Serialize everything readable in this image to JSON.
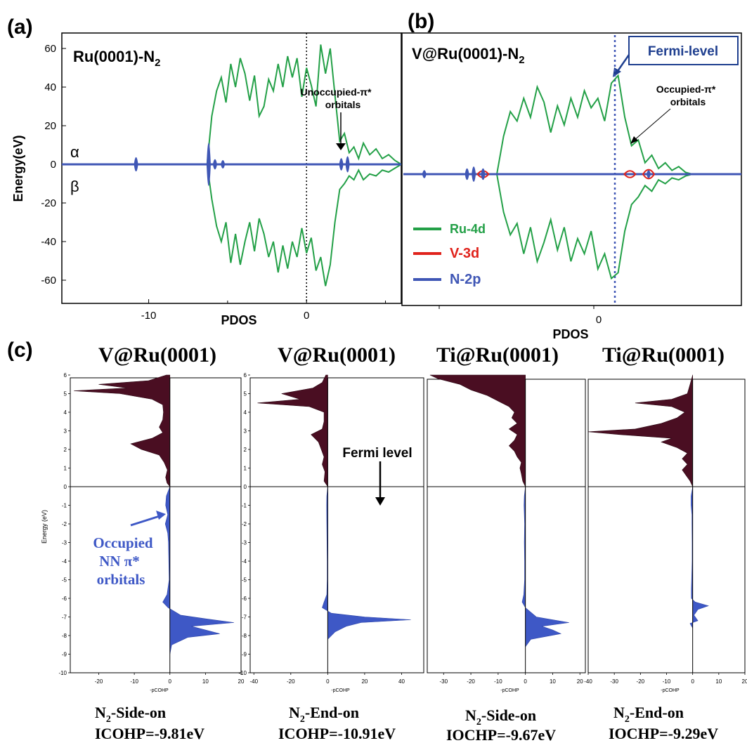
{
  "panel_labels": {
    "a": "(a)",
    "b": "(b)",
    "c": "(c)"
  },
  "colors": {
    "ru4d": "#23a047",
    "v3d": "#e0231c",
    "n2p": "#3f56b5",
    "cohp_pos": "#4a0e22",
    "cohp_neg": "#3e58c6",
    "callout": "#1f3f8f"
  },
  "chart_data": [
    {
      "type": "line",
      "panel": "a",
      "title": "Ru(0001)-N",
      "title_sub": "2",
      "ylabel": "Energy(eV)",
      "xlabel": "PDOS",
      "ylim": [
        -72,
        68
      ],
      "xlim": [
        -15.5,
        6
      ],
      "yticks": [
        "60",
        "40",
        "20",
        "0",
        "-20",
        "-40",
        "-60"
      ],
      "yticks_values": [
        60,
        40,
        20,
        0,
        -20,
        -40,
        -60
      ],
      "xticks": [
        "-10",
        "0"
      ],
      "xticks_values": [
        -10,
        0
      ],
      "spin_labels": [
        "α",
        "β"
      ],
      "annotation": [
        "Unoccupied-π*",
        "orbitals"
      ],
      "fermi_x": 0,
      "series": [
        {
          "name": "Ru-4d",
          "color": "#23a047",
          "x": [
            -6.3,
            -6.0,
            -5.7,
            -5.4,
            -5.1,
            -4.8,
            -4.5,
            -4.2,
            -3.9,
            -3.6,
            -3.3,
            -3.0,
            -2.7,
            -2.4,
            -2.1,
            -1.8,
            -1.5,
            -1.2,
            -0.9,
            -0.6,
            -0.3,
            0.0,
            0.3,
            0.6,
            0.9,
            1.2,
            1.5,
            1.8,
            2.1,
            2.4,
            2.7,
            3.0,
            3.3,
            3.6,
            4.0,
            4.4,
            4.8,
            5.2,
            5.6,
            6.0
          ],
          "upper": [
            0,
            25,
            38,
            45,
            32,
            52,
            40,
            55,
            47,
            33,
            46,
            25,
            30,
            44,
            38,
            52,
            40,
            56,
            45,
            55,
            35,
            50,
            41,
            30,
            62,
            47,
            60,
            36,
            12,
            16,
            6,
            9,
            3,
            11,
            5,
            8,
            3,
            5,
            2,
            0
          ],
          "lower": [
            0,
            -18,
            -32,
            -40,
            -30,
            -51,
            -36,
            -52,
            -40,
            -30,
            -45,
            -28,
            -36,
            -48,
            -40,
            -56,
            -42,
            -54,
            -40,
            -48,
            -33,
            -46,
            -38,
            -55,
            -48,
            -63,
            -52,
            -30,
            -13,
            -10,
            -6,
            -8,
            -3,
            -8,
            -5,
            -6,
            -3,
            -4,
            -2,
            0
          ]
        },
        {
          "name": "N-2p",
          "color": "#3f56b5",
          "peaks": [
            {
              "x": -10.8,
              "h": 3.5
            },
            {
              "x": -6.2,
              "h": 11
            },
            {
              "x": -5.8,
              "h": 2.5
            },
            {
              "x": -5.3,
              "h": 2
            },
            {
              "x": 2.2,
              "h": 3
            },
            {
              "x": 2.6,
              "h": 4
            }
          ]
        }
      ]
    },
    {
      "type": "line",
      "panel": "b",
      "title": "V@Ru(0001)-N",
      "title_sub": "2",
      "xlabel": "PDOS",
      "xtick_label": "0",
      "callout": "Fermi-level",
      "annotation": [
        "Occupied-π*",
        "orbitals"
      ],
      "legend": [
        "Ru-4d",
        "V-3d",
        "N-2p"
      ],
      "legend_position": "bottom-left",
      "series": [
        {
          "name": "Ru-4d",
          "color": "#23a047",
          "upper": [
            0,
            20,
            33,
            28,
            40,
            30,
            46,
            38,
            22,
            36,
            26,
            40,
            30,
            44,
            35,
            40,
            28,
            48,
            52,
            30,
            15,
            18,
            6,
            10,
            3,
            6,
            2,
            4,
            1,
            0
          ],
          "lower": [
            0,
            -20,
            -32,
            -26,
            -42,
            -28,
            -46,
            -36,
            -24,
            -40,
            -28,
            -46,
            -34,
            -42,
            -30,
            -50,
            -42,
            -55,
            -52,
            -30,
            -16,
            -12,
            -6,
            -9,
            -3,
            -5,
            -2,
            -3,
            -1,
            0
          ]
        },
        {
          "name": "V-3d",
          "color": "#e0231c",
          "peaks": [
            {
              "p": 0.23,
              "h": 3
            },
            {
              "p": 0.78,
              "h": 3
            },
            {
              "p": 0.85,
              "h": 4
            }
          ]
        },
        {
          "name": "N-2p",
          "color": "#3f56b5",
          "peaks": [
            {
              "p": 0.01,
              "h": 2
            },
            {
              "p": 0.17,
              "h": 3
            },
            {
              "p": 0.195,
              "h": 4
            },
            {
              "p": 0.23,
              "h": 3
            },
            {
              "p": 0.85,
              "h": 2
            }
          ]
        }
      ]
    },
    {
      "type": "area",
      "panel": "c1",
      "title": "V@Ru(0001)",
      "ylabel": "Energy (eV)",
      "xlabel": "-pCOHP",
      "xlim": [
        -28,
        20
      ],
      "xticks": [
        "-20",
        "-10",
        "0",
        "10",
        "20"
      ],
      "xticks_values": [
        -20,
        -10,
        0,
        10,
        20
      ],
      "ylim": [
        -10,
        6
      ],
      "yticks": [
        "6",
        "5",
        "4",
        "3",
        "2",
        "1",
        "0",
        "-1",
        "-2",
        "-3",
        "-4",
        "-5",
        "-6",
        "-7",
        "-8",
        "-9",
        "-10"
      ],
      "yticks_values": [
        6,
        5,
        4,
        3,
        2,
        1,
        0,
        -1,
        -2,
        -3,
        -4,
        -5,
        -6,
        -7,
        -8,
        -9,
        -10
      ],
      "caption": [
        "N",
        "2",
        "-Side-on"
      ],
      "icohp": "ICOHP=-9.81eV",
      "annotation": [
        "Occupied",
        "NN π*",
        "orbitals"
      ],
      "upper": [
        [
          0,
          0
        ],
        [
          0.2,
          -0.8
        ],
        [
          0.5,
          -1.2
        ],
        [
          0.9,
          -0.7
        ],
        [
          1.3,
          -1.6
        ],
        [
          1.7,
          -3
        ],
        [
          2.0,
          -8
        ],
        [
          2.3,
          -11
        ],
        [
          2.6,
          -5
        ],
        [
          2.9,
          -2
        ],
        [
          3.2,
          -3
        ],
        [
          3.6,
          -2
        ],
        [
          4.0,
          -1.8
        ],
        [
          4.4,
          -2
        ],
        [
          4.7,
          -5
        ],
        [
          5.0,
          -14
        ],
        [
          5.15,
          -27
        ],
        [
          5.3,
          -12
        ],
        [
          5.5,
          -20
        ],
        [
          5.7,
          -6
        ],
        [
          6.0,
          -1
        ]
      ],
      "lower": [
        [
          0,
          0
        ],
        [
          -0.5,
          -1
        ],
        [
          -1,
          -1.2
        ],
        [
          -1.5,
          -0.6
        ],
        [
          -2,
          -1.3
        ],
        [
          -2.5,
          -0.6
        ],
        [
          -3,
          -0.4
        ],
        [
          -4,
          -0.3
        ],
        [
          -5,
          -0.2
        ],
        [
          -5.8,
          -0.8
        ],
        [
          -6.2,
          -2
        ],
        [
          -6.5,
          -0.5
        ],
        [
          -6.9,
          3
        ],
        [
          -7.1,
          10
        ],
        [
          -7.3,
          18
        ],
        [
          -7.5,
          6
        ],
        [
          -7.7,
          10
        ],
        [
          -7.9,
          14
        ],
        [
          -8.1,
          5
        ],
        [
          -8.5,
          0.5
        ],
        [
          -9,
          0
        ]
      ]
    },
    {
      "type": "area",
      "panel": "c2",
      "title": "V@Ru(0001)",
      "xlabel": "-pCOHP",
      "xlim": [
        -42,
        52
      ],
      "xticks": [
        "-40",
        "-20",
        "0",
        "20",
        "40"
      ],
      "xticks_values": [
        -40,
        -20,
        0,
        20,
        40
      ],
      "ylim": [
        -10,
        6
      ],
      "yticks": [
        "6",
        "5",
        "4",
        "3",
        "2",
        "1",
        "0",
        "-1",
        "-2",
        "-3",
        "-4",
        "-5",
        "-6",
        "-7",
        "-8",
        "-9",
        "-10"
      ],
      "yticks_values": [
        6,
        5,
        4,
        3,
        2,
        1,
        0,
        -1,
        -2,
        -3,
        -4,
        -5,
        -6,
        -7,
        -8,
        -9,
        -10
      ],
      "caption": [
        "N",
        "2",
        "-End-on"
      ],
      "icohp": "ICOHP=-10.91eV",
      "annotation": [
        "Fermi level"
      ],
      "upper": [
        [
          0,
          0
        ],
        [
          0.3,
          -2
        ],
        [
          0.8,
          -1.5
        ],
        [
          1.2,
          -3
        ],
        [
          1.6,
          -2
        ],
        [
          2.0,
          -3.5
        ],
        [
          2.4,
          -5
        ],
        [
          2.8,
          -9
        ],
        [
          3.1,
          -3
        ],
        [
          3.5,
          -2
        ],
        [
          4.0,
          -2
        ],
        [
          4.3,
          -10
        ],
        [
          4.5,
          -38
        ],
        [
          4.7,
          -15
        ],
        [
          5.0,
          -25
        ],
        [
          5.3,
          -8
        ],
        [
          5.6,
          -3
        ],
        [
          6.0,
          -1
        ]
      ],
      "lower": [
        [
          0,
          0
        ],
        [
          -0.5,
          -0.5
        ],
        [
          -1,
          -0.6
        ],
        [
          -2,
          -0.5
        ],
        [
          -3,
          -0.4
        ],
        [
          -4,
          -0.3
        ],
        [
          -5,
          -0.3
        ],
        [
          -5.8,
          -0.5
        ],
        [
          -6.2,
          -2
        ],
        [
          -6.5,
          -3
        ],
        [
          -6.8,
          2
        ],
        [
          -7.0,
          20
        ],
        [
          -7.15,
          45
        ],
        [
          -7.3,
          18
        ],
        [
          -7.5,
          10
        ],
        [
          -7.8,
          4
        ],
        [
          -8.2,
          0
        ]
      ]
    },
    {
      "type": "area",
      "panel": "c3",
      "title": "Ti@Ru(0001)",
      "xlabel": "-pCOHP",
      "xlim": [
        -36,
        22
      ],
      "xticks": [
        "-30",
        "-20",
        "-10",
        "0",
        "10",
        "20"
      ],
      "xticks_values": [
        -30,
        -20,
        -10,
        0,
        10,
        20
      ],
      "ylim": [
        -10,
        6
      ],
      "caption": [
        "N",
        "2",
        "-Side-on"
      ],
      "icohp": "IOCHP=-9.67eV",
      "upper": [
        [
          0,
          0
        ],
        [
          0.3,
          -1
        ],
        [
          0.7,
          -1.5
        ],
        [
          1.0,
          -2
        ],
        [
          1.3,
          -1.5
        ],
        [
          1.6,
          -3
        ],
        [
          1.9,
          -4
        ],
        [
          2.2,
          -6
        ],
        [
          2.5,
          -4
        ],
        [
          2.8,
          -3
        ],
        [
          3.1,
          -6
        ],
        [
          3.4,
          -3
        ],
        [
          3.7,
          -5
        ],
        [
          4.0,
          -4
        ],
        [
          4.3,
          -6
        ],
        [
          4.6,
          -10
        ],
        [
          4.9,
          -14
        ],
        [
          5.2,
          -20
        ],
        [
          5.5,
          -24
        ],
        [
          5.8,
          -32
        ],
        [
          6.0,
          -35
        ]
      ],
      "lower": [
        [
          0,
          0
        ],
        [
          -0.5,
          -0.4
        ],
        [
          -1,
          -0.5
        ],
        [
          -2,
          -0.3
        ],
        [
          -3,
          -0.4
        ],
        [
          -4,
          -0.3
        ],
        [
          -5,
          -0.3
        ],
        [
          -5.8,
          -0.6
        ],
        [
          -6.2,
          -1.2
        ],
        [
          -6.5,
          0
        ],
        [
          -7.0,
          4
        ],
        [
          -7.3,
          16
        ],
        [
          -7.5,
          6
        ],
        [
          -7.7,
          10
        ],
        [
          -7.9,
          13
        ],
        [
          -8.2,
          2
        ],
        [
          -8.6,
          0
        ]
      ]
    },
    {
      "type": "area",
      "panel": "c4",
      "title": "Ti@Ru(0001)",
      "xlabel": "-pCOHP",
      "xlim": [
        -40,
        20
      ],
      "xticks": [
        "-40",
        "-30",
        "-20",
        "-10",
        "0",
        "10",
        "20"
      ],
      "xticks_values": [
        -40,
        -30,
        -20,
        -10,
        0,
        10,
        20
      ],
      "ylim": [
        -10,
        6
      ],
      "caption": [
        "N",
        "2",
        "-End-on"
      ],
      "icohp": "IOCHP=-9.29eV",
      "upper": [
        [
          0,
          0
        ],
        [
          0.3,
          -1
        ],
        [
          0.6,
          -2.5
        ],
        [
          0.9,
          -4
        ],
        [
          1.2,
          -2
        ],
        [
          1.5,
          -4
        ],
        [
          1.8,
          -2
        ],
        [
          2.1,
          -6
        ],
        [
          2.4,
          -12
        ],
        [
          2.6,
          -8
        ],
        [
          2.8,
          -28
        ],
        [
          2.95,
          -40
        ],
        [
          3.1,
          -22
        ],
        [
          3.4,
          -12
        ],
        [
          3.7,
          -6
        ],
        [
          4.0,
          -3
        ],
        [
          4.3,
          -8
        ],
        [
          4.5,
          -22
        ],
        [
          4.7,
          -8
        ],
        [
          5.0,
          -2
        ],
        [
          5.5,
          -1
        ],
        [
          6.0,
          0
        ]
      ],
      "lower": [
        [
          0,
          0
        ],
        [
          -0.5,
          -0.6
        ],
        [
          -1,
          -0.6
        ],
        [
          -1.5,
          -0.3
        ],
        [
          -2,
          -0.3
        ],
        [
          -3,
          -0.2
        ],
        [
          -4,
          -0.2
        ],
        [
          -5,
          -0.4
        ],
        [
          -5.5,
          -0.5
        ],
        [
          -6,
          -0.5
        ],
        [
          -6.2,
          1
        ],
        [
          -6.4,
          6
        ],
        [
          -6.6,
          2
        ],
        [
          -6.9,
          0.5
        ],
        [
          -7.2,
          2
        ],
        [
          -7.35,
          -1
        ],
        [
          -7.6,
          0
        ]
      ]
    }
  ]
}
